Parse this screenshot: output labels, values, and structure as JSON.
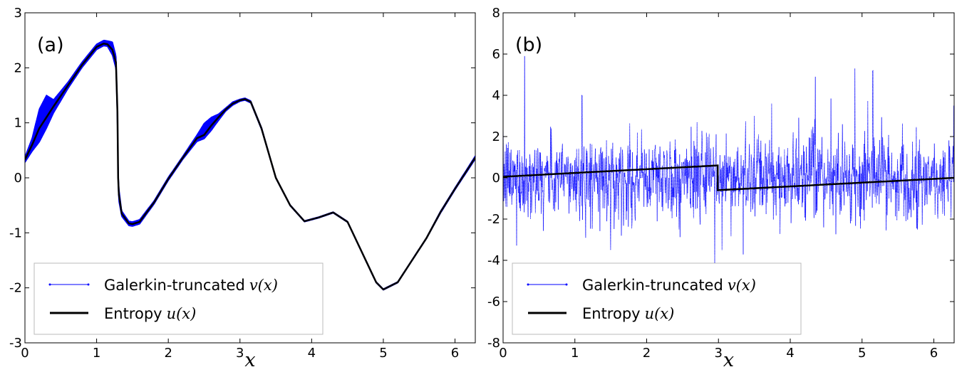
{
  "chart_data": [
    {
      "type": "line",
      "panel_label": "(a)",
      "xlabel": "x",
      "ylabel": "",
      "xlim": [
        0,
        6.283
      ],
      "ylim": [
        -3,
        3
      ],
      "xticks": [
        "0",
        "1",
        "2",
        "3",
        "4",
        "5",
        "6"
      ],
      "yticks": [
        "-3",
        "-2",
        "-1",
        "0",
        "1",
        "2",
        "3"
      ],
      "legend_location": "lower-left",
      "series": [
        {
          "name": "Galerkin-truncated",
          "name_math": "v(x)",
          "color": "#0000ff",
          "style": "thin line with dot markers, band of oscillations around u(x)",
          "x": [
            0,
            0.1,
            0.2,
            0.3,
            0.4,
            0.6,
            0.8,
            1.0,
            1.1,
            1.15,
            1.22,
            1.27,
            1.29,
            1.3,
            1.31,
            1.35,
            1.45,
            1.5,
            1.6,
            1.8,
            2.0,
            2.2,
            2.4,
            2.5,
            2.6,
            2.7,
            2.8,
            2.9,
            3.0,
            3.07,
            3.15,
            3.3,
            3.5,
            3.7,
            3.9,
            4.1,
            4.3,
            4.5,
            4.7,
            4.9,
            5.0,
            5.2,
            5.4,
            5.6,
            5.8,
            6.0,
            6.283
          ],
          "y": [
            0.33,
            0.6,
            0.95,
            1.2,
            1.3,
            1.68,
            2.06,
            2.38,
            2.45,
            2.44,
            2.35,
            2.1,
            1.2,
            0.0,
            -0.3,
            -0.65,
            -0.83,
            -0.84,
            -0.8,
            -0.45,
            -0.02,
            0.36,
            0.72,
            0.85,
            0.98,
            1.1,
            1.24,
            1.35,
            1.41,
            1.43,
            1.38,
            0.9,
            0.0,
            -0.5,
            -0.79,
            -0.72,
            -0.63,
            -0.8,
            -1.35,
            -1.9,
            -2.03,
            -1.9,
            -1.5,
            -1.1,
            -0.62,
            -0.2,
            0.37
          ],
          "band_amplitude": [
            0.05,
            0.12,
            0.3,
            0.3,
            0.12,
            0.06,
            0.05,
            0.05,
            0.05,
            0.05,
            0.12,
            0.12,
            0.15,
            0.15,
            0.12,
            0.05,
            0.04,
            0.04,
            0.04,
            0.03,
            0.03,
            0.03,
            0.06,
            0.14,
            0.12,
            0.06,
            0.03,
            0.03,
            0.02,
            0.02,
            0.02,
            0.02,
            0.01,
            0.01,
            0.01,
            0.01,
            0.01,
            0.01,
            0.01,
            0.01,
            0.01,
            0.01,
            0.01,
            0.01,
            0.02,
            0.02,
            0.03
          ]
        },
        {
          "name": "Entropy",
          "name_math": "u(x)",
          "color": "#000000",
          "x": [
            0,
            0.1,
            0.2,
            0.3,
            0.4,
            0.6,
            0.8,
            1.0,
            1.1,
            1.15,
            1.22,
            1.27,
            1.29,
            1.3,
            1.31,
            1.35,
            1.45,
            1.5,
            1.6,
            1.8,
            2.0,
            2.2,
            2.4,
            2.5,
            2.6,
            2.7,
            2.8,
            2.9,
            3.0,
            3.07,
            3.15,
            3.3,
            3.5,
            3.7,
            3.9,
            4.1,
            4.3,
            4.5,
            4.7,
            4.9,
            5.0,
            5.2,
            5.4,
            5.6,
            5.8,
            6.0,
            6.283
          ],
          "y": [
            0.33,
            0.6,
            0.9,
            1.1,
            1.3,
            1.68,
            2.06,
            2.38,
            2.44,
            2.43,
            2.33,
            2.1,
            1.2,
            0.0,
            -0.3,
            -0.65,
            -0.83,
            -0.84,
            -0.8,
            -0.45,
            -0.02,
            0.36,
            0.72,
            0.78,
            0.95,
            1.1,
            1.24,
            1.35,
            1.41,
            1.43,
            1.38,
            0.9,
            0.0,
            -0.5,
            -0.79,
            -0.72,
            -0.63,
            -0.8,
            -1.35,
            -1.9,
            -2.03,
            -1.9,
            -1.5,
            -1.1,
            -0.62,
            -0.2,
            0.37
          ]
        }
      ]
    },
    {
      "type": "line",
      "panel_label": "(b)",
      "xlabel": "x",
      "ylabel": "",
      "xlim": [
        0,
        6.283
      ],
      "ylim": [
        -8,
        8
      ],
      "xticks": [
        "0",
        "1",
        "2",
        "3",
        "4",
        "5",
        "6"
      ],
      "yticks": [
        "-8",
        "-6",
        "-4",
        "-2",
        "0",
        "2",
        "4",
        "6",
        "8"
      ],
      "legend_location": "lower-left",
      "series": [
        {
          "name": "Galerkin-truncated",
          "name_math": "v(x)",
          "color": "#0000ff",
          "style": "dense noisy fluctuations, std approx 1.0, occasional spikes",
          "noise_std": 1.0,
          "spikes": [
            {
              "x": 0.3,
              "y": 5.9
            },
            {
              "x": 1.1,
              "y": 4.0
            },
            {
              "x": 2.95,
              "y": 4.2
            },
            {
              "x": 4.35,
              "y": 4.9
            },
            {
              "x": 4.9,
              "y": 5.3
            },
            {
              "x": 5.15,
              "y": 5.2
            },
            {
              "x": 6.28,
              "y": 3.5
            },
            {
              "x": 2.95,
              "y": -4.2
            },
            {
              "x": 1.5,
              "y": -3.5
            },
            {
              "x": 3.05,
              "y": -3.5
            }
          ]
        },
        {
          "name": "Entropy",
          "name_math": "u(x)",
          "color": "#000000",
          "x": [
            0,
            2.99,
            2.99,
            6.283
          ],
          "y": [
            0.05,
            0.6,
            -0.6,
            0.0
          ]
        }
      ]
    }
  ]
}
